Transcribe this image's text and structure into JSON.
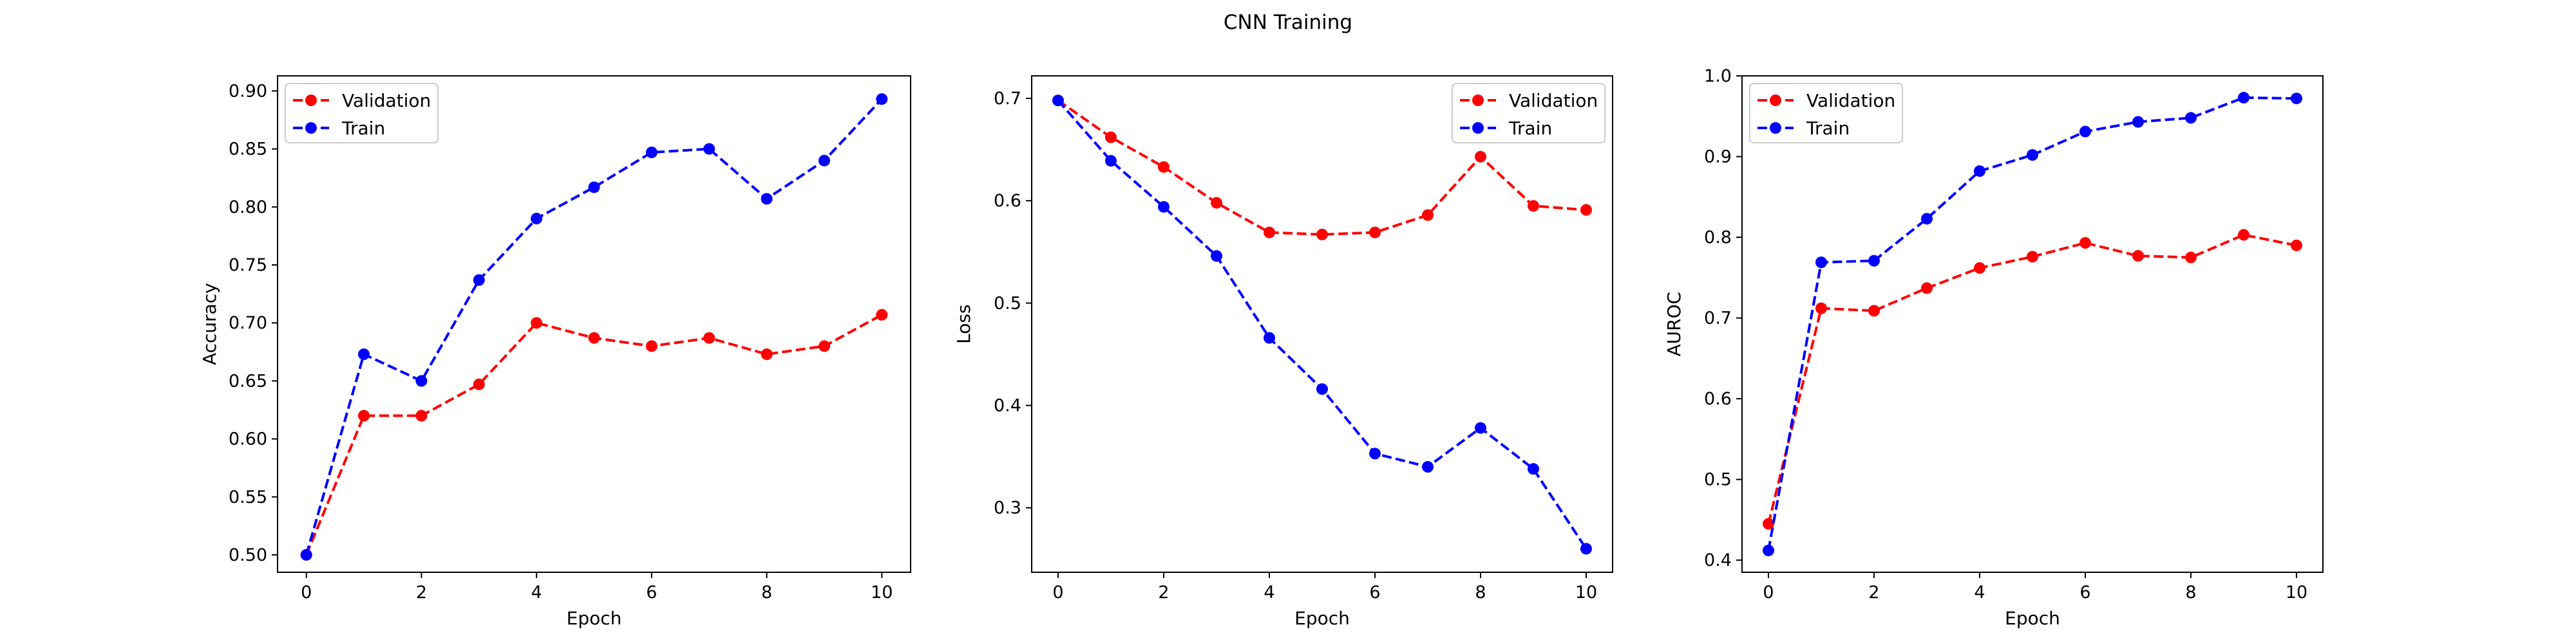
{
  "figure": {
    "title": "CNN Training"
  },
  "chart_data": [
    {
      "type": "line",
      "xlabel": "Epoch",
      "ylabel": "Accuracy",
      "xlim": [
        -0.5,
        10.5
      ],
      "ylim": [
        0.485,
        0.913
      ],
      "xticks": [
        0,
        2,
        4,
        6,
        8,
        10
      ],
      "yticks": [
        0.5,
        0.55,
        0.6,
        0.65,
        0.7,
        0.75,
        0.8,
        0.85,
        0.9
      ],
      "ytick_labels": [
        "0.50",
        "0.55",
        "0.60",
        "0.65",
        "0.70",
        "0.75",
        "0.80",
        "0.85",
        "0.90"
      ],
      "legend_position": "upper-left",
      "x": [
        0,
        1,
        2,
        3,
        4,
        5,
        6,
        7,
        8,
        9,
        10
      ],
      "series": [
        {
          "name": "Validation",
          "color": "#ff0000",
          "values": [
            0.5,
            0.62,
            0.62,
            0.647,
            0.7,
            0.687,
            0.68,
            0.687,
            0.673,
            0.68,
            0.707
          ]
        },
        {
          "name": "Train",
          "color": "#0000ff",
          "values": [
            0.5,
            0.673,
            0.65,
            0.737,
            0.79,
            0.817,
            0.847,
            0.85,
            0.807,
            0.84,
            0.893
          ]
        }
      ]
    },
    {
      "type": "line",
      "xlabel": "Epoch",
      "ylabel": "Loss",
      "xlim": [
        -0.5,
        10.5
      ],
      "ylim": [
        0.237,
        0.722
      ],
      "xticks": [
        0,
        2,
        4,
        6,
        8,
        10
      ],
      "yticks": [
        0.3,
        0.4,
        0.5,
        0.6,
        0.7
      ],
      "ytick_labels": [
        "0.3",
        "0.4",
        "0.5",
        "0.6",
        "0.7"
      ],
      "legend_position": "upper-right",
      "x": [
        0,
        1,
        2,
        3,
        4,
        5,
        6,
        7,
        8,
        9,
        10
      ],
      "series": [
        {
          "name": "Validation",
          "color": "#ff0000",
          "values": [
            0.698,
            0.662,
            0.633,
            0.598,
            0.569,
            0.567,
            0.569,
            0.586,
            0.643,
            0.595,
            0.591
          ]
        },
        {
          "name": "Train",
          "color": "#0000ff",
          "values": [
            0.698,
            0.639,
            0.594,
            0.546,
            0.466,
            0.416,
            0.353,
            0.34,
            0.378,
            0.338,
            0.26
          ]
        }
      ]
    },
    {
      "type": "line",
      "xlabel": "Epoch",
      "ylabel": "AUROC",
      "xlim": [
        -0.5,
        10.5
      ],
      "ylim": [
        0.385,
        1.0
      ],
      "xticks": [
        0,
        2,
        4,
        6,
        8,
        10
      ],
      "yticks": [
        0.4,
        0.5,
        0.6,
        0.7,
        0.8,
        0.9,
        1.0
      ],
      "ytick_labels": [
        "0.4",
        "0.5",
        "0.6",
        "0.7",
        "0.8",
        "0.9",
        "1.0"
      ],
      "legend_position": "upper-left",
      "x": [
        0,
        1,
        2,
        3,
        4,
        5,
        6,
        7,
        8,
        9,
        10
      ],
      "series": [
        {
          "name": "Validation",
          "color": "#ff0000",
          "values": [
            0.445,
            0.712,
            0.709,
            0.737,
            0.762,
            0.776,
            0.793,
            0.777,
            0.775,
            0.803,
            0.79
          ]
        },
        {
          "name": "Train",
          "color": "#0000ff",
          "values": [
            0.412,
            0.769,
            0.771,
            0.823,
            0.882,
            0.902,
            0.931,
            0.943,
            0.948,
            0.973,
            0.972
          ]
        }
      ]
    }
  ]
}
